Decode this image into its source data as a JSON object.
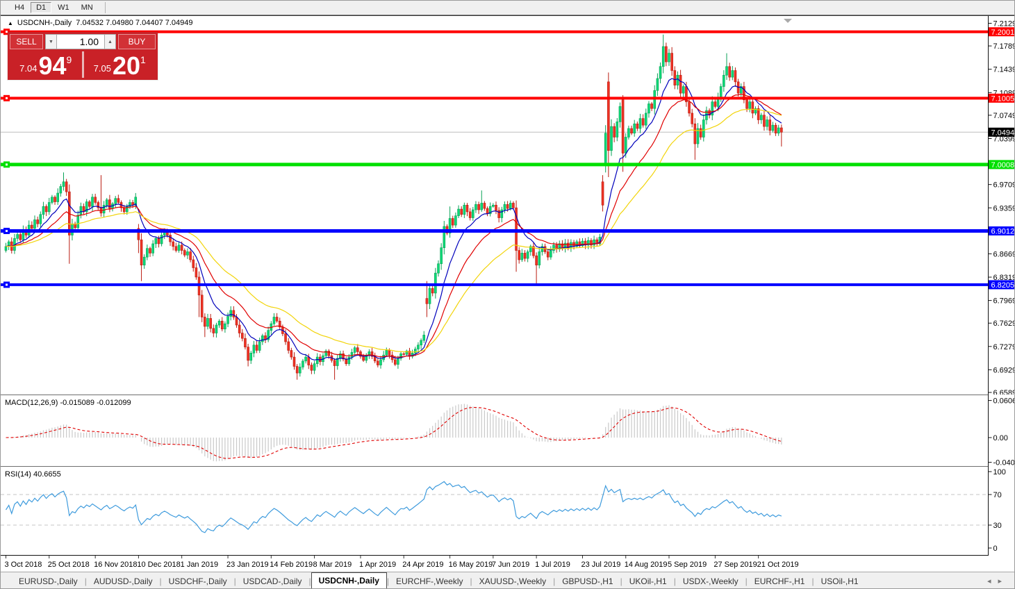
{
  "toolbar": {
    "timeframes": [
      {
        "label": "H4",
        "active": false
      },
      {
        "label": "D1",
        "active": true
      },
      {
        "label": "W1",
        "active": false
      },
      {
        "label": "MN",
        "active": false
      }
    ]
  },
  "chart": {
    "collapse_icon": "▲",
    "symbol_title": "USDCNH-,Daily",
    "ohlc": "7.04532 7.04980 7.04407 7.04949"
  },
  "trade_panel": {
    "sell_label": "SELL",
    "buy_label": "BUY",
    "volume": "1.00",
    "spinner_down": "▼",
    "spinner_up": "▲",
    "sell_price": {
      "prefix": "7.04",
      "big": "94",
      "sup": "9"
    },
    "buy_price": {
      "prefix": "7.05",
      "big": "20",
      "sup": "1"
    }
  },
  "price_axis": {
    "ticks": [
      "7.21290",
      "7.17890",
      "7.14390",
      "7.10890",
      "7.07490",
      "7.03990",
      "6.97090",
      "6.93590",
      "6.86690",
      "6.83190",
      "6.79690",
      "6.76290",
      "6.72790",
      "6.69290",
      "6.65890"
    ]
  },
  "levels": [
    {
      "value": 7.20013,
      "label": "7.20013",
      "color": "#ff0000",
      "width": 4,
      "type": "resistance"
    },
    {
      "value": 7.10051,
      "label": "7.10051",
      "color": "#ff0000",
      "width": 4,
      "type": "resistance"
    },
    {
      "value": 7.00089,
      "label": "7.00089",
      "color": "#00e000",
      "width": 5,
      "type": "support"
    },
    {
      "value": 6.90127,
      "label": "6.90127",
      "color": "#0000ff",
      "width": 5,
      "type": "support"
    },
    {
      "value": 6.82053,
      "label": "6.82053",
      "color": "#0000ff",
      "width": 4,
      "type": "support"
    }
  ],
  "current_price": {
    "value": 7.04949,
    "label": "7.04949"
  },
  "macd": {
    "label": "MACD(12,26,9) -0.015089 -0.012099",
    "axis": [
      "0.060687",
      "0.00",
      "-0.040432"
    ],
    "range": {
      "max": 0.060687,
      "min": -0.040432
    }
  },
  "rsi": {
    "label": "RSI(14) 40.6655",
    "axis": [
      "100",
      "70",
      "30",
      "0"
    ],
    "guide_levels": [
      70,
      30
    ]
  },
  "date_axis": [
    {
      "label": "3 Oct 2018",
      "i": 0
    },
    {
      "label": "25 Oct 2018",
      "i": 15
    },
    {
      "label": "16 Nov 2018",
      "i": 31
    },
    {
      "label": "10 Dec 2018",
      "i": 46
    },
    {
      "label": "1 Jan 2019",
      "i": 61
    },
    {
      "label": "23 Jan 2019",
      "i": 77
    },
    {
      "label": "14 Feb 2019",
      "i": 92
    },
    {
      "label": "8 Mar 2019",
      "i": 107
    },
    {
      "label": "1 Apr 2019",
      "i": 123
    },
    {
      "label": "24 Apr 2019",
      "i": 138
    },
    {
      "label": "16 May 2019",
      "i": 154
    },
    {
      "label": "7 Jun 2019",
      "i": 169
    },
    {
      "label": "1 Jul 2019",
      "i": 184
    },
    {
      "label": "23 Jul 2019",
      "i": 200
    },
    {
      "label": "14 Aug 2019",
      "i": 215
    },
    {
      "label": "5 Sep 2019",
      "i": 230
    },
    {
      "label": "27 Sep 2019",
      "i": 246
    },
    {
      "label": "21 Oct 2019",
      "i": 261
    }
  ],
  "tab_bar": {
    "scroll_left": "◂",
    "scroll_right": "▸",
    "tabs": [
      {
        "label": "EURUSD-,Daily",
        "active": false
      },
      {
        "label": "AUDUSD-,Daily",
        "active": false
      },
      {
        "label": "USDCHF-,Daily",
        "active": false
      },
      {
        "label": "USDCAD-,Daily",
        "active": false
      },
      {
        "label": "USDCNH-,Daily",
        "active": true
      },
      {
        "label": "EURCHF-,Weekly",
        "active": false
      },
      {
        "label": "XAUUSD-,Weekly",
        "active": false
      },
      {
        "label": "GBPUSD-,H1",
        "active": false
      },
      {
        "label": "UKOil-,H1",
        "active": false
      },
      {
        "label": "USDX-,Weekly",
        "active": false
      },
      {
        "label": "EURCHF-,H1",
        "active": false
      },
      {
        "label": "USOil-,H1",
        "active": false
      }
    ]
  },
  "chart_data": {
    "type": "candlestick",
    "symbol": "USDCNH",
    "timeframe": "Daily",
    "x_start_label": "3 Oct 2018",
    "x_end_label": "21 Oct 2019",
    "y_range": [
      6.6589,
      7.2129
    ],
    "indicators": [
      {
        "name": "MACD",
        "params": [
          12,
          26,
          9
        ],
        "values": [
          -0.015089,
          -0.012099
        ]
      },
      {
        "name": "RSI",
        "params": [
          14
        ],
        "value": 40.6655
      }
    ],
    "ma": [
      {
        "period": 10,
        "color": "#0000bb"
      },
      {
        "period": 21,
        "color": "#e00000"
      },
      {
        "period": 40,
        "color": "#f2d40a"
      }
    ],
    "colors": {
      "up": "#0ed977",
      "up_border": "#09a257",
      "down": "#ee3224",
      "down_border": "#bb1d12",
      "macd_hist": "#c9c9c9",
      "macd_signal": "#e00000",
      "rsi": "#3e9bdd",
      "current_line": "#bdbdbd"
    },
    "closes": [
      6.878,
      6.885,
      6.872,
      6.89,
      6.896,
      6.888,
      6.902,
      6.895,
      6.91,
      6.905,
      6.918,
      6.912,
      6.926,
      6.938,
      6.93,
      6.944,
      6.952,
      6.945,
      6.958,
      6.968,
      6.975,
      6.96,
      6.895,
      6.912,
      6.906,
      6.925,
      6.938,
      6.93,
      6.945,
      6.938,
      6.952,
      6.944,
      6.936,
      6.928,
      6.94,
      6.948,
      6.935,
      6.942,
      6.95,
      6.944,
      6.936,
      6.93,
      6.938,
      6.944,
      6.94,
      6.952,
      6.888,
      6.85,
      6.862,
      6.875,
      6.868,
      6.882,
      6.89,
      6.882,
      6.895,
      6.902,
      6.895,
      6.885,
      6.878,
      6.872,
      6.88,
      6.872,
      6.865,
      6.87,
      6.858,
      6.846,
      6.832,
      6.805,
      6.772,
      6.758,
      6.77,
      6.755,
      6.748,
      6.76,
      6.766,
      6.754,
      6.762,
      6.773,
      6.782,
      6.772,
      6.76,
      6.748,
      6.74,
      6.727,
      6.707,
      6.718,
      6.73,
      6.722,
      6.735,
      6.744,
      6.738,
      6.752,
      6.762,
      6.772,
      6.766,
      6.757,
      6.747,
      6.735,
      6.722,
      6.712,
      6.698,
      6.688,
      6.697,
      6.706,
      6.712,
      6.7,
      6.692,
      6.702,
      6.712,
      6.705,
      6.714,
      6.721,
      6.714,
      6.707,
      6.699,
      6.71,
      6.717,
      6.709,
      6.702,
      6.712,
      6.719,
      6.726,
      6.72,
      6.713,
      6.707,
      6.714,
      6.72,
      6.713,
      6.706,
      6.7,
      6.708,
      6.715,
      6.722,
      6.715,
      6.708,
      6.701,
      6.71,
      6.717,
      6.716,
      6.721,
      6.713,
      6.718,
      6.724,
      6.73,
      6.737,
      6.745,
      6.792,
      6.815,
      6.808,
      6.838,
      6.852,
      6.876,
      6.908,
      6.898,
      6.92,
      6.91,
      6.924,
      6.934,
      6.926,
      6.94,
      6.93,
      6.921,
      6.933,
      6.941,
      6.933,
      6.943,
      6.935,
      6.927,
      6.938,
      6.94,
      6.932,
      6.921,
      6.933,
      6.941,
      6.935,
      6.943,
      6.936,
      6.872,
      6.858,
      6.868,
      6.86,
      6.87,
      6.878,
      6.864,
      6.85,
      6.87,
      6.878,
      6.87,
      6.862,
      6.872,
      6.88,
      6.874,
      6.882,
      6.875,
      6.883,
      6.876,
      6.884,
      6.878,
      6.885,
      6.879,
      6.886,
      6.88,
      6.887,
      6.88,
      6.888,
      6.882,
      6.892,
      6.94,
      7.048,
      7.022,
      7.058,
      7.042,
      7.065,
      7.088,
      7.018,
      7.042,
      7.055,
      7.048,
      7.062,
      7.055,
      7.07,
      7.06,
      7.078,
      7.092,
      7.085,
      7.112,
      7.13,
      7.148,
      7.178,
      7.155,
      7.168,
      7.142,
      7.12,
      7.135,
      7.108,
      7.118,
      7.095,
      7.078,
      7.062,
      7.032,
      7.055,
      7.042,
      7.068,
      7.082,
      7.075,
      7.095,
      7.088,
      7.102,
      7.118,
      7.135,
      7.148,
      7.132,
      7.142,
      7.125,
      7.108,
      7.118,
      7.098,
      7.085,
      7.095,
      7.078,
      7.085,
      7.068,
      7.075,
      7.058,
      7.068,
      7.052,
      7.06,
      7.048,
      7.056,
      7.0495
    ],
    "overrides": {
      "20": {
        "h": 6.989
      },
      "22": {
        "l": 6.852
      },
      "33": {
        "h": 6.985
      },
      "46": {
        "o": 6.905,
        "l": 6.868
      },
      "47": {
        "l": 6.826
      },
      "67": {
        "l": 6.772
      },
      "69": {
        "l": 6.742
      },
      "84": {
        "l": 6.698
      },
      "101": {
        "l": 6.678
      },
      "114": {
        "l": 6.678
      },
      "146": {
        "o": 6.8,
        "h": 6.826,
        "l": 6.772
      },
      "154": {
        "h": 6.938
      },
      "165": {
        "h": 6.962
      },
      "177": {
        "l": 6.84
      },
      "184": {
        "l": 6.822
      },
      "207": {
        "o": 6.975,
        "h": 6.985
      },
      "208": {
        "o": 7.0,
        "h": 7.06
      },
      "209": {
        "o": 7.125,
        "h": 7.139,
        "l": 6.982
      },
      "214": {
        "o": 7.098,
        "h": 7.105,
        "l": 6.99
      },
      "228": {
        "h": 7.196
      },
      "239": {
        "l": 7.008
      },
      "250": {
        "h": 7.168
      },
      "269": {
        "l": 7.028
      }
    }
  }
}
